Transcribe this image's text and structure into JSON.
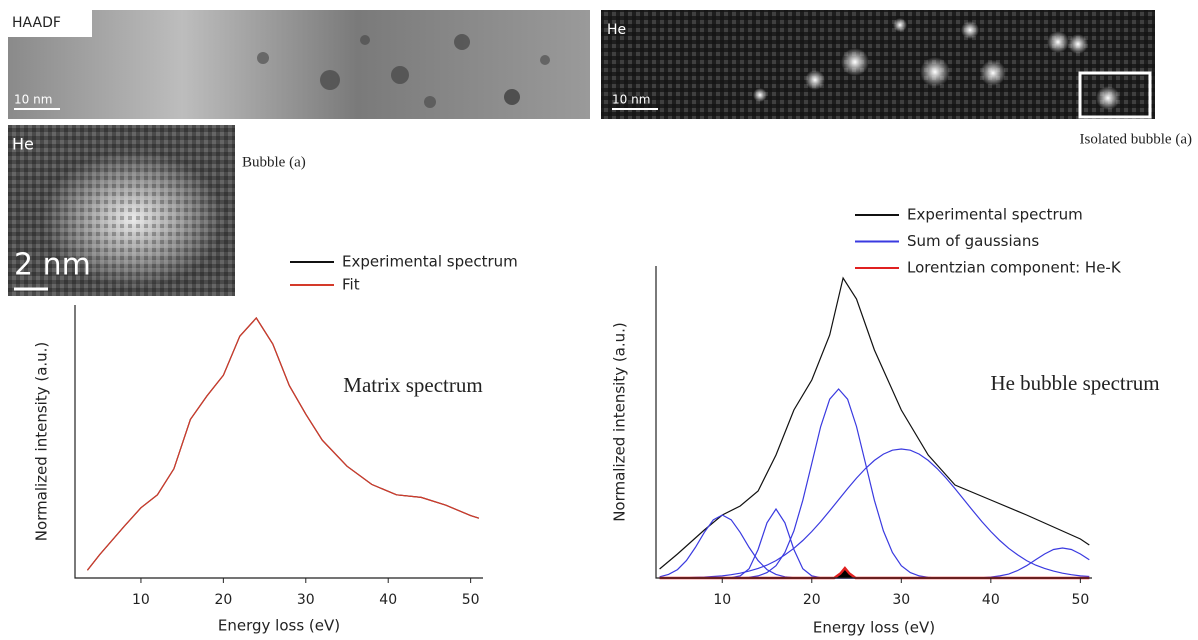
{
  "panels": {
    "haadf": {
      "label": "HAADF",
      "scale": "10 nm"
    },
    "he_map": {
      "label": "He",
      "scale": "10 nm",
      "caption": "Isolated bubble (a)"
    },
    "bubble": {
      "label": "He",
      "scale": "2 nm",
      "caption": "Bubble (a)"
    }
  },
  "chart_data": [
    {
      "type": "line",
      "annotation": "Matrix spectrum",
      "xlabel": "Energy loss (eV)",
      "ylabel": "Normalized intensity (a.u.)",
      "xlim": [
        2,
        51.5
      ],
      "ylim": [
        0,
        1.05
      ],
      "xticks": [
        10,
        20,
        30,
        40,
        50
      ],
      "series": [
        {
          "name": "Experimental spectrum",
          "color": "#111111",
          "x": [
            3.5,
            5,
            8,
            10,
            12,
            14,
            16,
            18,
            20,
            22,
            24,
            26,
            28,
            30,
            32,
            35,
            38,
            41,
            44,
            47,
            50,
            51
          ],
          "values": [
            0.03,
            0.09,
            0.2,
            0.27,
            0.32,
            0.42,
            0.61,
            0.7,
            0.78,
            0.93,
            1.0,
            0.9,
            0.74,
            0.63,
            0.53,
            0.43,
            0.36,
            0.32,
            0.31,
            0.28,
            0.24,
            0.23
          ]
        },
        {
          "name": "Fit",
          "color": "#d43a2a",
          "x": [
            3.5,
            5,
            8,
            10,
            12,
            14,
            16,
            18,
            20,
            22,
            24,
            26,
            28,
            30,
            32,
            35,
            38,
            41,
            44,
            47,
            50,
            51
          ],
          "values": [
            0.03,
            0.09,
            0.2,
            0.27,
            0.32,
            0.42,
            0.61,
            0.7,
            0.78,
            0.93,
            1.0,
            0.9,
            0.74,
            0.63,
            0.53,
            0.43,
            0.36,
            0.32,
            0.31,
            0.28,
            0.24,
            0.23
          ]
        }
      ]
    },
    {
      "type": "line",
      "annotation": "He bubble spectrum",
      "xlabel": "Energy loss (eV)",
      "ylabel": "Normalized intensity (a.u.)",
      "xlim": [
        2.6,
        51.3
      ],
      "ylim": [
        0,
        1.04
      ],
      "xticks": [
        10,
        20,
        30,
        40,
        50
      ],
      "series": [
        {
          "name": "Experimental spectrum",
          "color": "#111111",
          "x": [
            3,
            5,
            8,
            10,
            12,
            14,
            16,
            18,
            20,
            22,
            23.5,
            25,
            27,
            30,
            33,
            36,
            40,
            44,
            47,
            50,
            51
          ],
          "values": [
            0.03,
            0.08,
            0.16,
            0.21,
            0.24,
            0.29,
            0.41,
            0.56,
            0.66,
            0.81,
            1.0,
            0.93,
            0.76,
            0.56,
            0.41,
            0.31,
            0.26,
            0.21,
            0.17,
            0.13,
            0.11
          ]
        },
        {
          "name": "Sum of gaussians",
          "color": "#3a3ae0",
          "x": [
            3,
            4,
            5,
            6,
            7,
            8,
            9,
            10,
            11,
            12,
            13,
            14,
            15,
            16,
            17,
            18,
            19,
            20,
            21,
            22,
            23,
            24,
            25,
            26,
            27,
            28,
            29,
            30,
            31,
            32,
            33,
            34,
            35,
            36,
            37,
            38,
            39,
            40,
            41,
            42,
            43,
            44,
            45,
            46,
            47,
            48,
            49,
            50,
            51
          ],
          "values": [
            0.004,
            0.012,
            0.028,
            0.058,
            0.102,
            0.152,
            0.194,
            0.21,
            0.194,
            0.152,
            0.102,
            0.058,
            0.028,
            0.012,
            0.004,
            0.001,
            0,
            0,
            0,
            0,
            0,
            0,
            0,
            0,
            0,
            0,
            0,
            0,
            0,
            0,
            0,
            0,
            0,
            0,
            0,
            0,
            0,
            0,
            0,
            0,
            0,
            0,
            0,
            0,
            0,
            0,
            0,
            0,
            0
          ]
        },
        {
          "color": "#3a3ae0",
          "x": [
            3,
            4,
            5,
            6,
            7,
            8,
            9,
            10,
            11,
            12,
            13,
            14,
            15,
            16,
            17,
            18,
            19,
            20,
            21,
            22,
            23,
            24,
            25,
            26,
            27,
            28,
            29,
            30,
            31,
            32,
            33,
            34,
            35,
            36,
            37,
            38,
            39,
            40,
            41,
            42,
            43,
            44,
            45,
            46,
            47,
            48,
            49,
            50,
            51
          ],
          "values": [
            0,
            0,
            0,
            0,
            0,
            0,
            0,
            0,
            0.001,
            0.007,
            0.031,
            0.095,
            0.184,
            0.23,
            0.184,
            0.095,
            0.031,
            0.007,
            0.001,
            0,
            0,
            0,
            0,
            0,
            0,
            0,
            0,
            0,
            0,
            0,
            0,
            0,
            0,
            0,
            0,
            0,
            0,
            0,
            0,
            0,
            0,
            0,
            0,
            0,
            0,
            0,
            0,
            0,
            0
          ]
        },
        {
          "color": "#3a3ae0",
          "x": [
            3,
            4,
            5,
            6,
            7,
            8,
            9,
            10,
            11,
            12,
            13,
            14,
            15,
            16,
            17,
            18,
            19,
            20,
            21,
            22,
            23,
            24,
            25,
            26,
            27,
            28,
            29,
            30,
            31,
            32,
            33,
            34,
            35,
            36,
            37,
            38,
            39,
            40,
            41,
            42,
            43,
            44,
            45,
            46,
            47,
            48,
            49,
            50,
            51
          ],
          "values": [
            0,
            0,
            0,
            0,
            0,
            0,
            0,
            0,
            0,
            0,
            0.002,
            0.007,
            0.018,
            0.041,
            0.085,
            0.157,
            0.259,
            0.382,
            0.505,
            0.596,
            0.63,
            0.596,
            0.505,
            0.382,
            0.259,
            0.157,
            0.085,
            0.041,
            0.018,
            0.007,
            0.002,
            0,
            0,
            0,
            0,
            0,
            0,
            0,
            0,
            0,
            0,
            0,
            0,
            0,
            0,
            0,
            0,
            0,
            0
          ]
        },
        {
          "color": "#3a3ae0",
          "x": [
            3,
            4,
            5,
            6,
            7,
            8,
            9,
            10,
            11,
            12,
            13,
            14,
            15,
            16,
            17,
            18,
            19,
            20,
            21,
            22,
            23,
            24,
            25,
            26,
            27,
            28,
            29,
            30,
            31,
            32,
            33,
            34,
            35,
            36,
            37,
            38,
            39,
            40,
            41,
            42,
            43,
            44,
            45,
            46,
            47,
            48,
            49,
            50,
            51
          ],
          "values": [
            0,
            0,
            0.001,
            0.001,
            0.002,
            0.003,
            0.005,
            0.007,
            0.011,
            0.016,
            0.023,
            0.032,
            0.043,
            0.058,
            0.077,
            0.099,
            0.125,
            0.155,
            0.188,
            0.224,
            0.261,
            0.298,
            0.333,
            0.365,
            0.392,
            0.413,
            0.426,
            0.43,
            0.426,
            0.413,
            0.392,
            0.365,
            0.333,
            0.298,
            0.261,
            0.224,
            0.188,
            0.155,
            0.125,
            0.099,
            0.077,
            0.058,
            0.043,
            0.032,
            0.023,
            0.016,
            0.011,
            0.007,
            0.005
          ]
        },
        {
          "color": "#3a3ae0",
          "x": [
            3,
            4,
            5,
            6,
            7,
            8,
            9,
            10,
            11,
            12,
            13,
            14,
            15,
            16,
            17,
            18,
            19,
            20,
            21,
            22,
            23,
            24,
            25,
            26,
            27,
            28,
            29,
            30,
            31,
            32,
            33,
            34,
            35,
            36,
            37,
            38,
            39,
            40,
            41,
            42,
            43,
            44,
            45,
            46,
            47,
            48,
            49,
            50,
            51
          ],
          "values": [
            0,
            0,
            0,
            0,
            0,
            0,
            0,
            0,
            0,
            0,
            0,
            0,
            0,
            0,
            0,
            0,
            0,
            0,
            0,
            0,
            0,
            0,
            0,
            0,
            0,
            0,
            0,
            0,
            0,
            0,
            0,
            0,
            0,
            0,
            0,
            0,
            0.001,
            0.003,
            0.007,
            0.013,
            0.025,
            0.041,
            0.061,
            0.08,
            0.095,
            0.1,
            0.095,
            0.08,
            0.061
          ]
        },
        {
          "name": "Lorentzian component: He-K",
          "color": "#e02020",
          "fill": "#000000",
          "x": [
            3,
            22.5,
            23.2,
            23.7,
            24.2,
            24.9,
            51
          ],
          "values": [
            0,
            0,
            0.015,
            0.033,
            0.015,
            0,
            0
          ]
        }
      ]
    }
  ]
}
